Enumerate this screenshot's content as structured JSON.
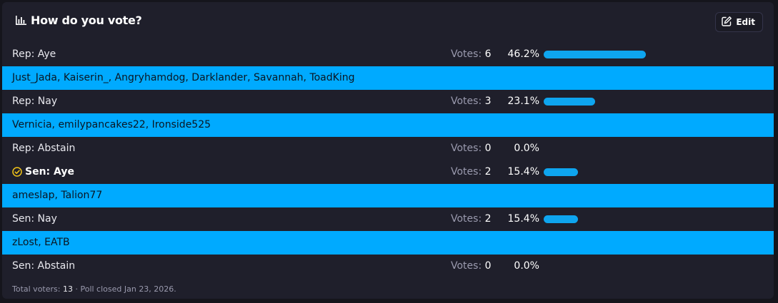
{
  "poll": {
    "title": "How do you vote?",
    "edit_label": "Edit",
    "votes_label": "Votes:",
    "rows": [
      {
        "label": "Rep: Aye",
        "votes": "6",
        "percent": "46.2%",
        "fraction": 0.462,
        "voters": "Just_Jada, Kaiserin_, Angryhamdog, Darklander, Savannah, ToadKing"
      },
      {
        "label": "Rep: Nay",
        "votes": "3",
        "percent": "23.1%",
        "fraction": 0.231,
        "voters": "Vernicia, emilypancakes22, Ironside525"
      },
      {
        "label": "Rep: Abstain",
        "votes": "0",
        "percent": "0.0%",
        "fraction": 0.0
      },
      {
        "label": "Sen: Aye",
        "votes": "2",
        "percent": "15.4%",
        "fraction": 0.154,
        "selected": true,
        "voters": "ameslap, Talion77"
      },
      {
        "label": "Sen: Nay",
        "votes": "2",
        "percent": "15.4%",
        "fraction": 0.154,
        "voters": "zLost, EATB"
      },
      {
        "label": "Sen: Abstain",
        "votes": "0",
        "percent": "0.0%",
        "fraction": 0.0
      }
    ],
    "footer": {
      "total_label": "Total voters:",
      "total_value": "13",
      "separator": "·",
      "closed_text": "Poll closed Jan 23, 2026."
    }
  },
  "colors": {
    "accent": "#00aaff",
    "bar": "#0ea5ef",
    "check": "#f2c418",
    "panel": "#1f1f2b"
  },
  "icons": {
    "title": "bar-chart-icon",
    "edit": "edit-icon",
    "selected": "check-circle-icon"
  }
}
